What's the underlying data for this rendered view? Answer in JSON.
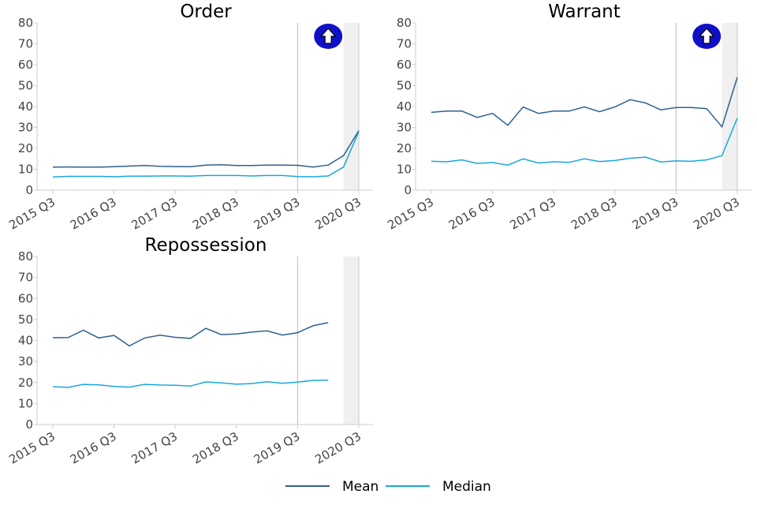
{
  "chart_data": [
    {
      "type": "line",
      "title": "Order",
      "categories": [
        "2015 Q3",
        null,
        null,
        null,
        "2016 Q3",
        null,
        null,
        null,
        "2017 Q3",
        null,
        null,
        null,
        "2018 Q3",
        null,
        null,
        null,
        "2019 Q3",
        null,
        null,
        null,
        "2020 Q3"
      ],
      "series": [
        {
          "name": "Mean",
          "color": "#31608f",
          "values": [
            11,
            11.1,
            11,
            11,
            11.2,
            11.5,
            11.8,
            11.4,
            11.3,
            11.2,
            12,
            12.2,
            11.8,
            11.8,
            12,
            12,
            11.9,
            11,
            12,
            16.5,
            28.5
          ]
        },
        {
          "name": "Median",
          "color": "#1aa7dc",
          "values": [
            6.3,
            6.6,
            6.6,
            6.6,
            6.4,
            6.7,
            6.7,
            6.8,
            6.8,
            6.7,
            7,
            7,
            7,
            6.8,
            7,
            7,
            6.5,
            6.4,
            6.8,
            11,
            28
          ]
        }
      ],
      "ylim": [
        0,
        80
      ],
      "yticks": [
        0,
        10,
        20,
        30,
        40,
        50,
        60,
        70,
        80
      ]
    },
    {
      "type": "line",
      "title": "Warrant",
      "categories": [
        "2015 Q3",
        null,
        null,
        null,
        "2016 Q3",
        null,
        null,
        null,
        "2017 Q3",
        null,
        null,
        null,
        "2018 Q3",
        null,
        null,
        null,
        "2019 Q3",
        null,
        null,
        null,
        "2020 Q3"
      ],
      "series": [
        {
          "name": "Mean",
          "color": "#31608f",
          "values": [
            37.2,
            37.8,
            37.8,
            34.8,
            36.7,
            31,
            39.8,
            36.7,
            37.8,
            37.8,
            39.8,
            37.5,
            39.8,
            43.3,
            41.7,
            38.4,
            39.5,
            39.5,
            39,
            30.3,
            54
          ]
        },
        {
          "name": "Median",
          "color": "#1aa7dc",
          "values": [
            13.8,
            13.6,
            14.5,
            12.8,
            13.2,
            12,
            15,
            13,
            13.6,
            13.3,
            15,
            13.7,
            14.2,
            15.3,
            15.8,
            13.5,
            14,
            13.8,
            14.5,
            16.5,
            34.5
          ]
        }
      ],
      "ylim": [
        0,
        80
      ],
      "yticks": [
        0,
        10,
        20,
        30,
        40,
        50,
        60,
        70,
        80
      ]
    },
    {
      "type": "line",
      "title": "Repossession",
      "categories": [
        "2015 Q3",
        null,
        null,
        null,
        "2016 Q3",
        null,
        null,
        null,
        "2017 Q3",
        null,
        null,
        null,
        "2018 Q3",
        null,
        null,
        null,
        "2019 Q3",
        null,
        null,
        null,
        "2020 Q3"
      ],
      "series": [
        {
          "name": "Mean",
          "color": "#31608f",
          "values": [
            41.3,
            41.4,
            44.9,
            41.2,
            42.4,
            37.4,
            41.2,
            42.5,
            41.5,
            41,
            45.8,
            42.8,
            43.1,
            44,
            44.6,
            42.6,
            43.7,
            47,
            48.5,
            null,
            null
          ]
        },
        {
          "name": "Median",
          "color": "#1aa7dc",
          "values": [
            18,
            17.7,
            19.1,
            18.9,
            18.1,
            17.8,
            19.1,
            18.8,
            18.7,
            18.3,
            20.3,
            19.8,
            19.2,
            19.5,
            20.4,
            19.6,
            20.2,
            21,
            21.1,
            null,
            null
          ]
        }
      ],
      "ylim": [
        0,
        80
      ],
      "yticks": [
        0,
        10,
        20,
        30,
        40,
        50,
        60,
        70,
        80
      ]
    }
  ]
}
